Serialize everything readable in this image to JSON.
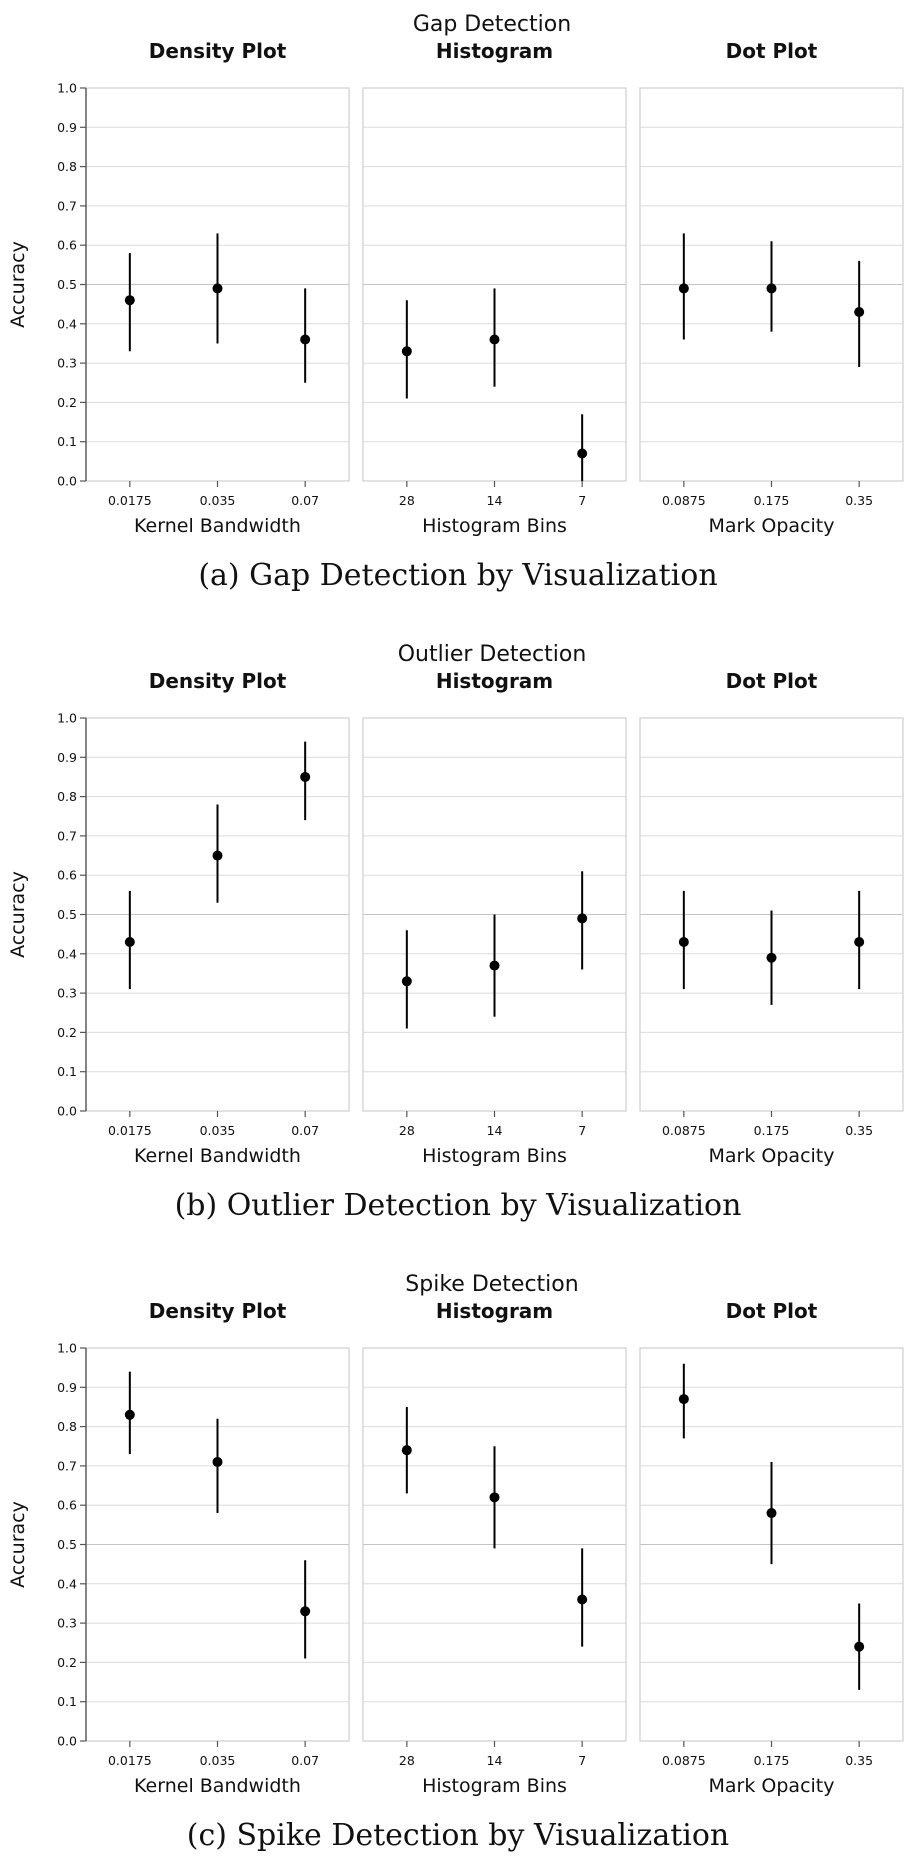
{
  "chart_data": [
    {
      "type": "scatter",
      "title": "Gap Detection",
      "caption": "(a) Gap Detection by Visualization",
      "ylabel": "Accuracy",
      "ylim": [
        0,
        1
      ],
      "yticks": [
        "0.0",
        "0.1",
        "0.2",
        "0.3",
        "0.4",
        "0.5",
        "0.6",
        "0.7",
        "0.8",
        "0.9",
        "1.0"
      ],
      "panels": [
        {
          "title": "Density Plot",
          "xlabel": "Kernel Bandwidth",
          "categories": [
            "0.0175",
            "0.035",
            "0.07"
          ],
          "values": [
            0.46,
            0.49,
            0.36
          ],
          "lower": [
            0.33,
            0.35,
            0.25
          ],
          "upper": [
            0.58,
            0.63,
            0.49
          ]
        },
        {
          "title": "Histogram",
          "xlabel": "Histogram Bins",
          "categories": [
            "28",
            "14",
            "7"
          ],
          "values": [
            0.33,
            0.36,
            0.07
          ],
          "lower": [
            0.21,
            0.24,
            0.0
          ],
          "upper": [
            0.46,
            0.49,
            0.17
          ]
        },
        {
          "title": "Dot Plot",
          "xlabel": "Mark Opacity",
          "categories": [
            "0.0875",
            "0.175",
            "0.35"
          ],
          "values": [
            0.49,
            0.49,
            0.43
          ],
          "lower": [
            0.36,
            0.38,
            0.29
          ],
          "upper": [
            0.63,
            0.61,
            0.56
          ]
        }
      ]
    },
    {
      "type": "scatter",
      "title": "Outlier Detection",
      "caption": "(b) Outlier Detection by Visualization",
      "ylabel": "Accuracy",
      "ylim": [
        0,
        1
      ],
      "yticks": [
        "0.0",
        "0.1",
        "0.2",
        "0.3",
        "0.4",
        "0.5",
        "0.6",
        "0.7",
        "0.8",
        "0.9",
        "1.0"
      ],
      "panels": [
        {
          "title": "Density Plot",
          "xlabel": "Kernel Bandwidth",
          "categories": [
            "0.0175",
            "0.035",
            "0.07"
          ],
          "values": [
            0.43,
            0.65,
            0.85
          ],
          "lower": [
            0.31,
            0.53,
            0.74
          ],
          "upper": [
            0.56,
            0.78,
            0.94
          ]
        },
        {
          "title": "Histogram",
          "xlabel": "Histogram Bins",
          "categories": [
            "28",
            "14",
            "7"
          ],
          "values": [
            0.33,
            0.37,
            0.49
          ],
          "lower": [
            0.21,
            0.24,
            0.36
          ],
          "upper": [
            0.46,
            0.5,
            0.61
          ]
        },
        {
          "title": "Dot Plot",
          "xlabel": "Mark Opacity",
          "categories": [
            "0.0875",
            "0.175",
            "0.35"
          ],
          "values": [
            0.43,
            0.39,
            0.43
          ],
          "lower": [
            0.31,
            0.27,
            0.31
          ],
          "upper": [
            0.56,
            0.51,
            0.56
          ]
        }
      ]
    },
    {
      "type": "scatter",
      "title": "Spike Detection",
      "caption": "(c) Spike Detection by Visualization",
      "ylabel": "Accuracy",
      "ylim": [
        0,
        1
      ],
      "yticks": [
        "0.0",
        "0.1",
        "0.2",
        "0.3",
        "0.4",
        "0.5",
        "0.6",
        "0.7",
        "0.8",
        "0.9",
        "1.0"
      ],
      "panels": [
        {
          "title": "Density Plot",
          "xlabel": "Kernel Bandwidth",
          "categories": [
            "0.0175",
            "0.035",
            "0.07"
          ],
          "values": [
            0.83,
            0.71,
            0.33
          ],
          "lower": [
            0.73,
            0.58,
            0.21
          ],
          "upper": [
            0.94,
            0.82,
            0.46
          ]
        },
        {
          "title": "Histogram",
          "xlabel": "Histogram Bins",
          "categories": [
            "28",
            "14",
            "7"
          ],
          "values": [
            0.74,
            0.62,
            0.36
          ],
          "lower": [
            0.63,
            0.49,
            0.24
          ],
          "upper": [
            0.85,
            0.75,
            0.49
          ]
        },
        {
          "title": "Dot Plot",
          "xlabel": "Mark Opacity",
          "categories": [
            "0.0875",
            "0.175",
            "0.35"
          ],
          "values": [
            0.87,
            0.58,
            0.24
          ],
          "lower": [
            0.77,
            0.45,
            0.13
          ],
          "upper": [
            0.96,
            0.71,
            0.35
          ]
        }
      ]
    }
  ]
}
